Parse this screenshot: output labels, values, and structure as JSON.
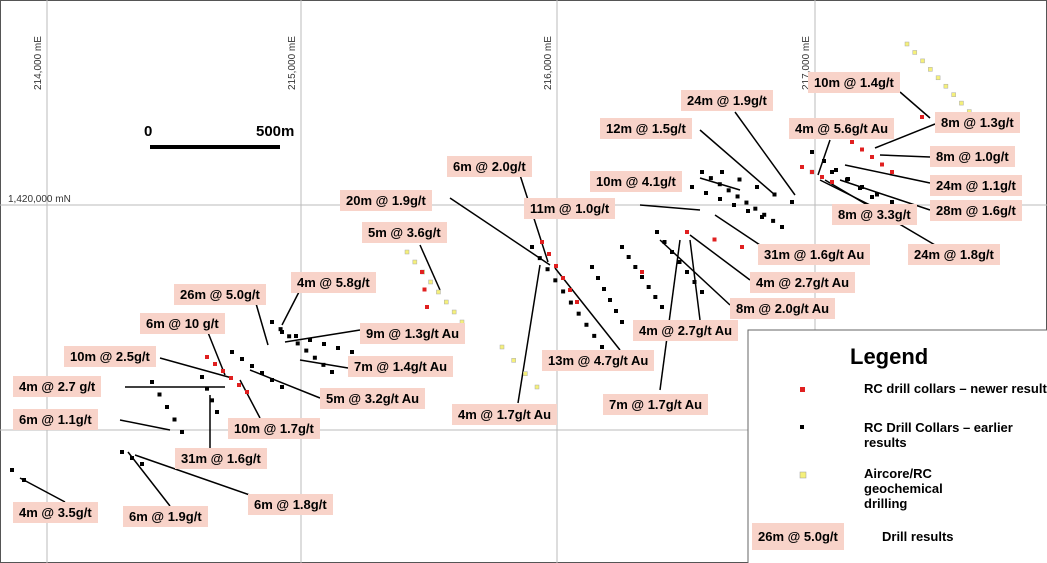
{
  "grid": {
    "eastings": [
      "214,000 mE",
      "215,000 mE",
      "216,000 mE",
      "217,000 mE"
    ],
    "northings": [
      "1,420,000 mN"
    ]
  },
  "scale_bar": {
    "start": "0",
    "end": "500m"
  },
  "callouts": [
    "10m @ 1.4g/t",
    "24m @ 1.9g/t",
    "12m @ 1.5g/t",
    "4m @ 5.6g/t Au",
    "8m @ 1.3g/t",
    "8m @ 1.0g/t",
    "24m @ 1.1g/t",
    "28m @ 1.6g/t",
    "8m @ 3.3g/t",
    "24m @ 1.8g/t",
    "6m @ 2.0g/t",
    "10m @ 4.1g/t",
    "20m @ 1.9g/t",
    "11m @ 1.0g/t",
    "5m @ 3.6g/t",
    "31m @ 1.6g/t Au",
    "4m @ 2.7g/t Au",
    "4m @ 5.8g/t",
    "26m @ 5.0g/t",
    "8m @ 2.0g/t Au",
    "6m @ 10 g/t",
    "9m @ 1.3g/t Au",
    "4m @ 2.7g/t Au",
    "10m @ 2.5g/t",
    "7m @ 1.4g/t Au",
    "13m @ 4.7g/t Au",
    "4m @ 2.7 g/t",
    "5m @ 3.2g/t Au",
    "4m @ 1.7g/t Au",
    "7m @ 1.7g/t Au",
    "6m @ 1.1g/t",
    "10m @ 1.7g/t",
    "31m @ 1.6g/t",
    "4m @ 3.5g/t",
    "6m @ 1.9g/t",
    "6m @ 1.8g/t"
  ],
  "legend": {
    "title": "Legend",
    "items": [
      "RC drill collars – newer results",
      "RC Drill Collars – earlier results",
      "Aircore/RC geochemical drilling"
    ],
    "sample_label": "26m @ 5.0g/t",
    "sample_text": "Drill results"
  }
}
